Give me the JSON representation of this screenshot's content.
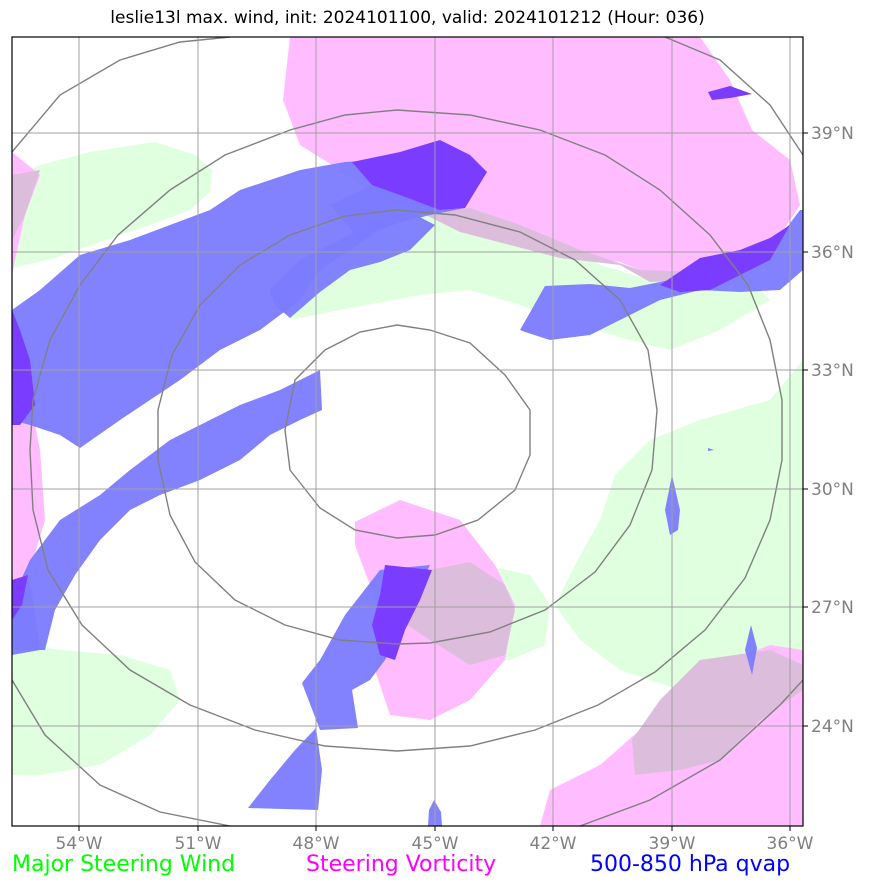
{
  "title": "leslie13l max. wind, init: 2024101100, valid: 2024101212 (Hour: 036)",
  "lon_labels": [
    "54°W",
    "51°W",
    "48°W",
    "45°W",
    "42°W",
    "39°W",
    "36°W"
  ],
  "lat_labels": [
    "39°N",
    "36°N",
    "33°N",
    "30°N",
    "27°N",
    "24°N"
  ],
  "legend": [
    {
      "label": "Major Steering Wind",
      "color": "#00ff00"
    },
    {
      "label": "Steering Vorticity",
      "color": "#ff00ff"
    },
    {
      "label": "500-850 hPa qvap",
      "color": "#0000ff"
    }
  ],
  "colors": {
    "steering_wind_fill": "#dfffdf",
    "vorticity_fill": "#ffbcff",
    "qvap_fill": "#7b7bff",
    "qvap_strong_fill": "#7a3cff",
    "grid": "#a0a0a0",
    "range_rings": "#808080"
  }
}
